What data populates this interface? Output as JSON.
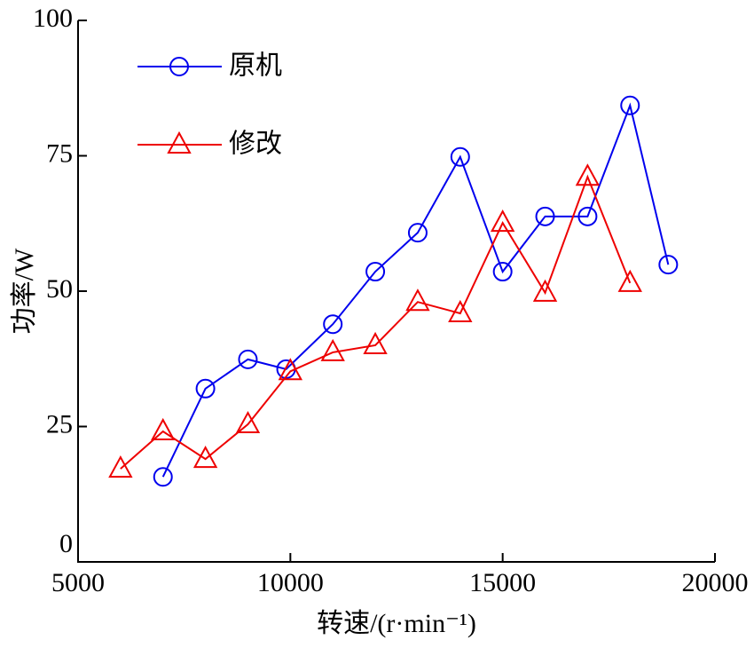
{
  "chart_data": {
    "type": "line",
    "xlabel": "转速/(r·min⁻¹)",
    "ylabel": "功率/W",
    "xlim": [
      5000,
      20000
    ],
    "xticks": [
      5000,
      10000,
      15000,
      20000
    ],
    "ylim": [
      0,
      100
    ],
    "yticks": [
      0,
      25,
      50,
      75,
      100
    ],
    "legend": "upper left",
    "series": [
      {
        "name": "原机",
        "color": "#0000ee",
        "marker": "circle",
        "x": [
          7000,
          8000,
          9000,
          9900,
          11000,
          12000,
          13000,
          14000,
          15000,
          16000,
          17000,
          18000,
          18900
        ],
        "values": [
          15.7,
          32,
          37.4,
          35.6,
          43.9,
          53.6,
          60.8,
          74.8,
          53.6,
          63.8,
          63.8,
          84.3,
          54.9
        ]
      },
      {
        "name": "修改",
        "color": "#ee0000",
        "marker": "triangle",
        "x": [
          6000,
          7000,
          8000,
          9000,
          10000,
          11000,
          12000,
          13000,
          14000,
          15000,
          16000,
          17000,
          18000
        ],
        "values": [
          17.2,
          24.1,
          19,
          25.4,
          35.2,
          38.7,
          40,
          48,
          45.9,
          62.6,
          49.7,
          71.1,
          51.5
        ]
      }
    ]
  }
}
